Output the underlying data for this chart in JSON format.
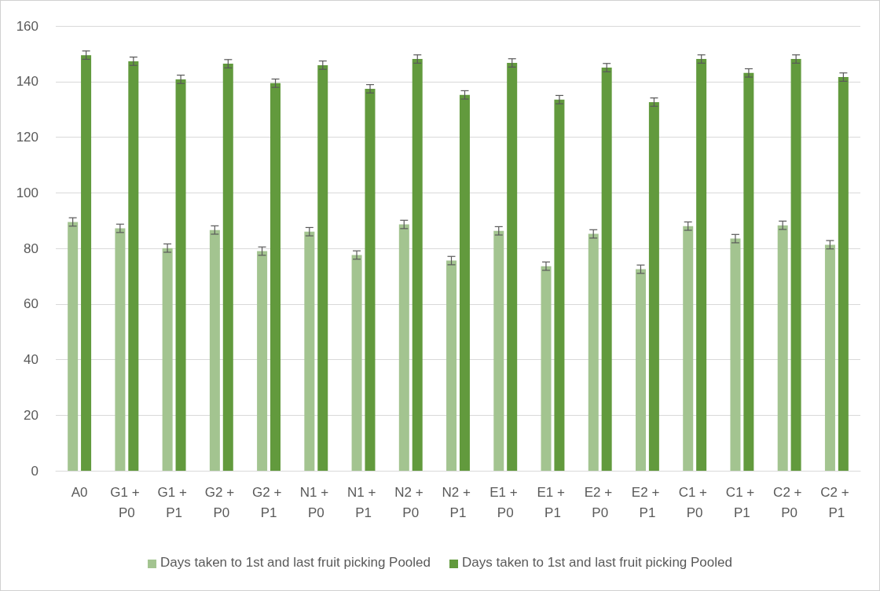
{
  "chart_data": {
    "type": "bar",
    "categories": [
      "A0",
      "G1 + P0",
      "G1 + P1",
      "G2 + P0",
      "G2 + P1",
      "N1 + P0",
      "N1 + P1",
      "N2 + P0",
      "N2 + P1",
      "E1 + P0",
      "E1 + P1",
      "E2 + P0",
      "E2 + P1",
      "C1 + P0",
      "C1 + P1",
      "C2 + P0",
      "C2 + P1"
    ],
    "series": [
      {
        "name": "Days taken to 1st and last fruit picking Pooled",
        "color": "#a3c490",
        "values": [
          89.5,
          87.2,
          80.1,
          86.6,
          79,
          86,
          77.6,
          88.6,
          75.6,
          86.3,
          73.6,
          85.2,
          72.5,
          88,
          83.5,
          88.3,
          81.3
        ],
        "errors": [
          1.5,
          1.5,
          1.5,
          1.5,
          1.5,
          1.5,
          1.5,
          1.5,
          1.5,
          1.5,
          1.5,
          1.5,
          1.5,
          1.5,
          1.5,
          1.5,
          1.5
        ]
      },
      {
        "name": "Days taken to 1st and last fruit picking Pooled",
        "color": "#629a3d",
        "values": [
          149.5,
          147.3,
          140.8,
          146.4,
          139.4,
          145.9,
          137.4,
          148.1,
          135.2,
          146.7,
          133.5,
          145,
          132.6,
          148.1,
          143.1,
          148.1,
          141.6
        ],
        "errors": [
          1.5,
          1.5,
          1.5,
          1.5,
          1.5,
          1.5,
          1.5,
          1.5,
          1.5,
          1.5,
          1.5,
          1.5,
          1.5,
          1.5,
          1.5,
          1.5,
          1.5
        ]
      }
    ],
    "ylim": [
      0,
      160
    ],
    "yticks": [
      0,
      20,
      40,
      60,
      80,
      100,
      120,
      140,
      160
    ],
    "grid": "y",
    "legend": "bottom"
  }
}
